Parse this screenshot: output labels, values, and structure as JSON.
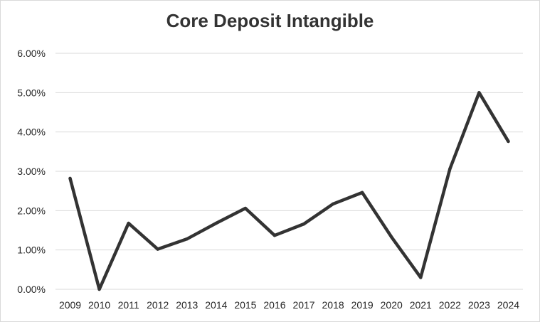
{
  "chart_data": {
    "type": "line",
    "title": "Core Deposit Intangible",
    "xlabel": "",
    "ylabel": "",
    "categories": [
      "2009",
      "2010",
      "2011",
      "2012",
      "2013",
      "2014",
      "2015",
      "2016",
      "2017",
      "2018",
      "2019",
      "2020",
      "2021",
      "2022",
      "2023",
      "2024"
    ],
    "series": [
      {
        "values": [
          2.82,
          0.0,
          1.68,
          1.02,
          1.28,
          1.68,
          2.06,
          1.37,
          1.66,
          2.17,
          2.46,
          1.33,
          0.3,
          3.06,
          5.0,
          3.76
        ],
        "color": "#333333"
      }
    ],
    "ylim": [
      0,
      6
    ],
    "yticks": [
      "0.00%",
      "1.00%",
      "2.00%",
      "3.00%",
      "4.00%",
      "5.00%",
      "6.00%"
    ],
    "grid": true,
    "legend": "none"
  }
}
